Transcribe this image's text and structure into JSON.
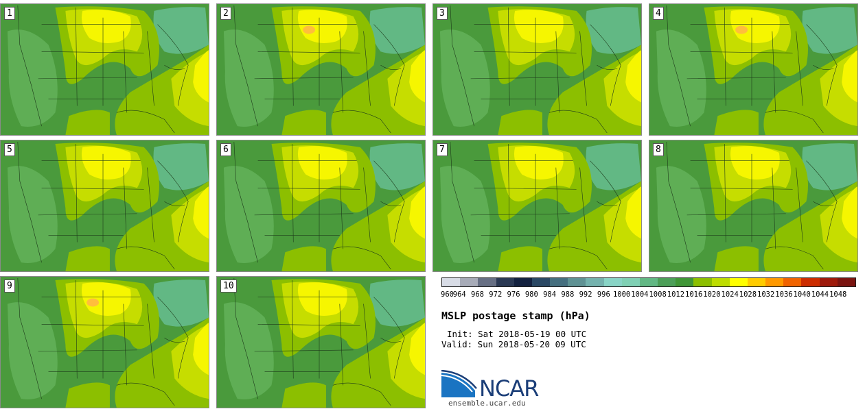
{
  "chart_data": {
    "type": "heatmap",
    "title": "MSLP postage stamp (hPa)",
    "init": "Init: Sat 2018-05-19 00 UTC",
    "valid": "Valid: Sun 2018-05-20 09 UTC",
    "panels": [
      {
        "label": "1",
        "high_center": false
      },
      {
        "label": "2",
        "high_center": true
      },
      {
        "label": "3",
        "high_center": false
      },
      {
        "label": "4",
        "high_center": true
      },
      {
        "label": "5",
        "high_center": false
      },
      {
        "label": "6",
        "high_center": false
      },
      {
        "label": "7",
        "high_center": false
      },
      {
        "label": "8",
        "high_center": false
      },
      {
        "label": "9",
        "high_center": true
      },
      {
        "label": "10",
        "high_center": false
      }
    ],
    "colorbar": {
      "ticks": [
        "960",
        "964",
        "968",
        "972",
        "976",
        "980",
        "984",
        "988",
        "992",
        "996",
        "1000",
        "1004",
        "1008",
        "1012",
        "1016",
        "1020",
        "1024",
        "1028",
        "1032",
        "1036",
        "1040",
        "1044",
        "1048"
      ],
      "colors": [
        "#d8dce6",
        "#a7abb8",
        "#676f84",
        "#2b3954",
        "#142240",
        "#2a4864",
        "#456f7f",
        "#5f9294",
        "#74b2ae",
        "#88d4c6",
        "#7fd0b4",
        "#62b884",
        "#4c9f58",
        "#3f9636",
        "#8cbf00",
        "#bedd00",
        "#ffff00",
        "#ffcc00",
        "#ff9900",
        "#f06300",
        "#cc2c00",
        "#9e1a0b",
        "#7a1410"
      ]
    }
  },
  "logo": {
    "name": "NCAR",
    "site": "ensemble.ucar.edu"
  },
  "colors": {
    "dark_green": "#4a9a3c",
    "mid_green": "#5fae55",
    "light_green": "#62b884",
    "lime": "#8cbf00",
    "yellow_green": "#c6dd00",
    "yellow": "#f6f600",
    "orange": "#ffbe3c",
    "border_line": "#1d3a1a"
  }
}
